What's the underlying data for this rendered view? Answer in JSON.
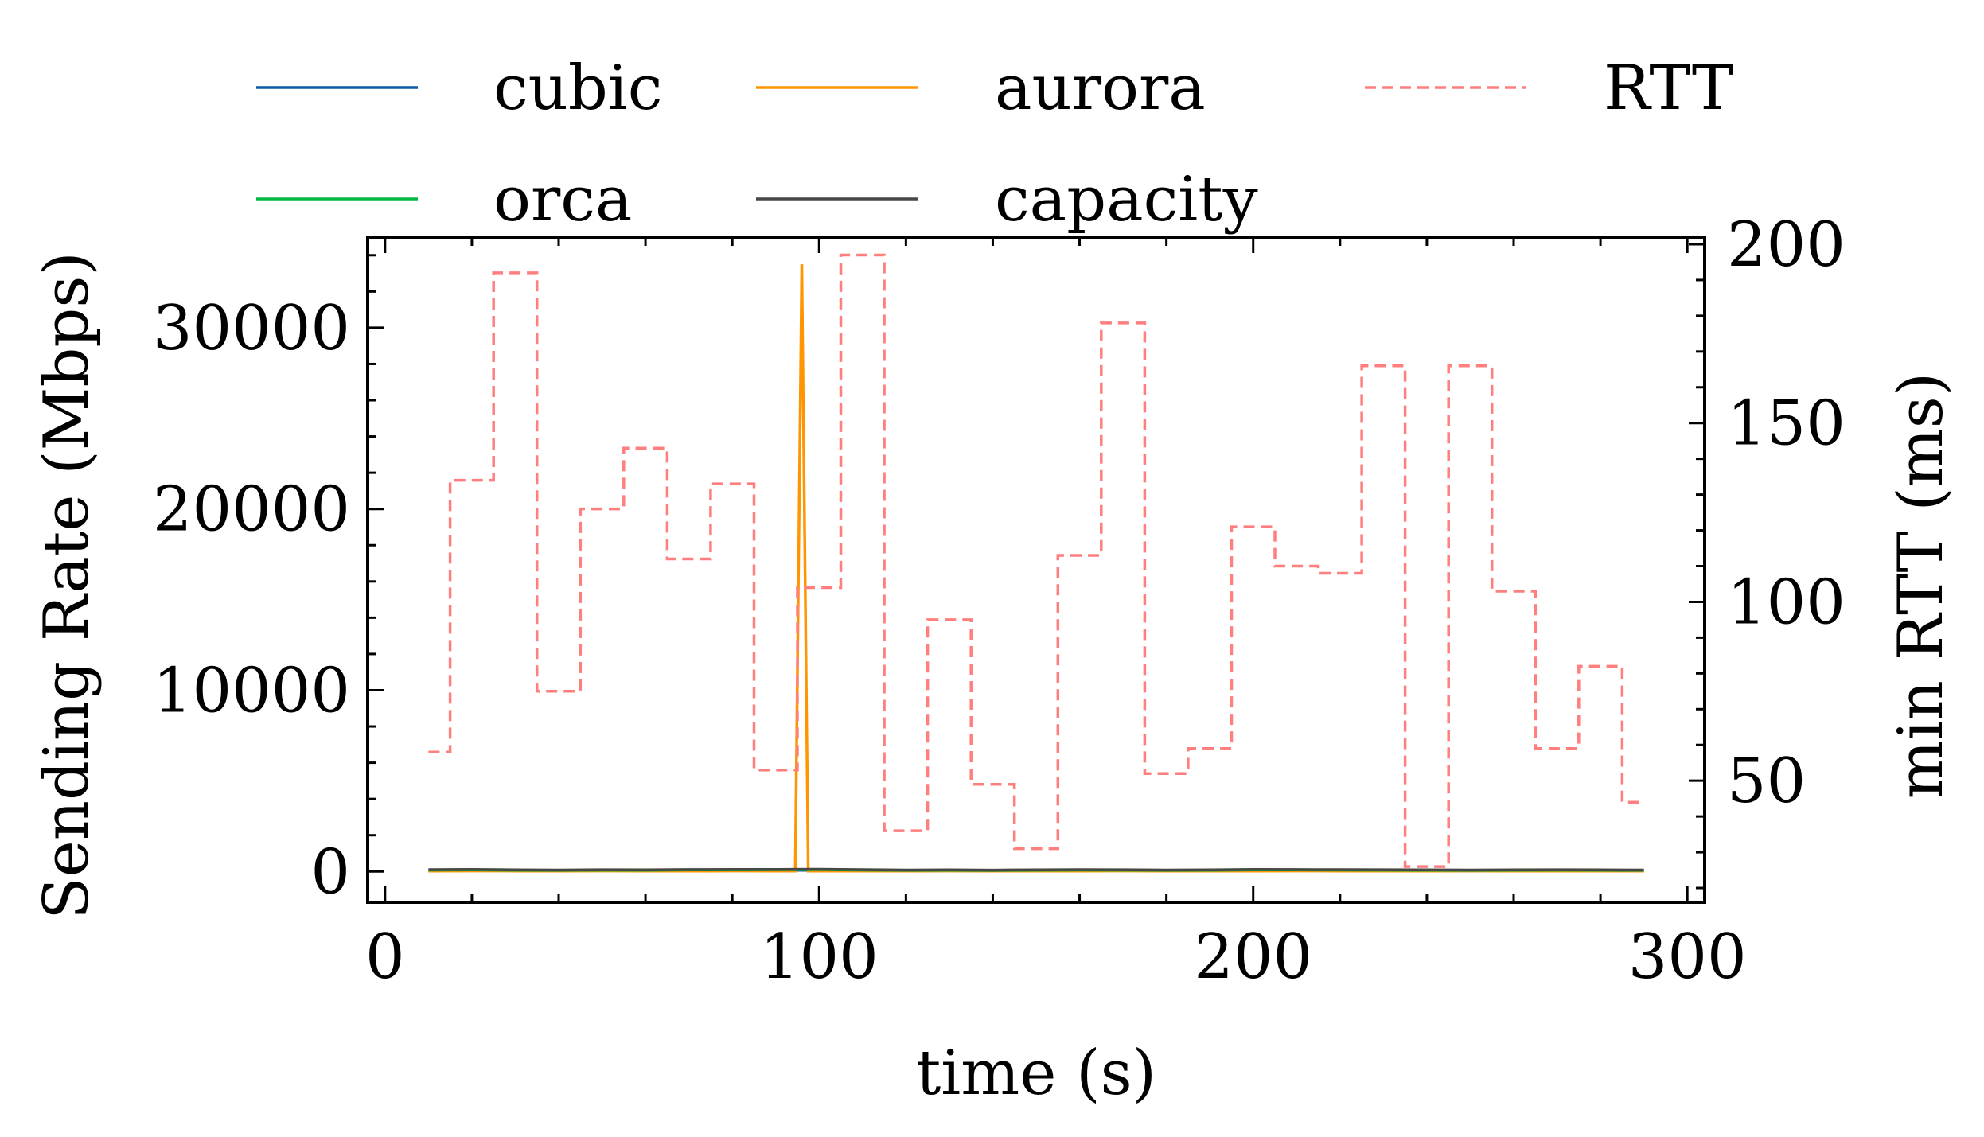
{
  "chart_data": {
    "type": "line",
    "xlabel": "time (s)",
    "ylabel": "Sending Rate (Mbps)",
    "y2label": "min RTT (ms)",
    "xlim": [
      -4,
      304
    ],
    "ylim": [
      -1700,
      35000
    ],
    "y2lim": [
      16,
      202
    ],
    "x_ticks": [
      0,
      100,
      200,
      300
    ],
    "x_ticklabels": [
      "0",
      "100",
      "200",
      "300"
    ],
    "y_ticks": [
      0,
      10000,
      20000,
      30000
    ],
    "y_ticklabels": [
      "0",
      "10000",
      "20000",
      "30000"
    ],
    "y2_ticks": [
      50,
      100,
      150,
      200
    ],
    "y2_ticklabels": [
      "50",
      "100",
      "150",
      "200"
    ],
    "grid": false,
    "legend_position": "top (above plot)",
    "series": [
      {
        "name": "cubic",
        "axis": "left",
        "color": "#0C5DA5",
        "style": "solid",
        "x": [
          10,
          20,
          30,
          40,
          50,
          60,
          70,
          80,
          90,
          100,
          110,
          120,
          130,
          140,
          150,
          160,
          170,
          180,
          190,
          200,
          210,
          220,
          230,
          240,
          250,
          260,
          270,
          280,
          290
        ],
        "y": [
          60,
          70,
          55,
          40,
          50,
          45,
          55,
          60,
          65,
          70,
          50,
          35,
          40,
          30,
          45,
          55,
          50,
          35,
          40,
          60,
          55,
          50,
          45,
          40,
          35,
          45,
          50,
          40,
          40
        ]
      },
      {
        "name": "aurora",
        "axis": "left",
        "color": "#FF9500",
        "style": "solid",
        "x": [
          10,
          20,
          30,
          40,
          50,
          60,
          70,
          80,
          90,
          94.5,
          96,
          97.5,
          100,
          110,
          120,
          130,
          140,
          150,
          160,
          170,
          180,
          190,
          200,
          210,
          220,
          230,
          240,
          250,
          260,
          270,
          280,
          290
        ],
        "y": [
          20,
          30,
          25,
          20,
          30,
          25,
          20,
          30,
          25,
          20,
          33500,
          20,
          25,
          20,
          25,
          30,
          20,
          25,
          20,
          30,
          25,
          20,
          25,
          30,
          20,
          25,
          20,
          30,
          25,
          20,
          25,
          20
        ]
      },
      {
        "name": "orca",
        "axis": "left",
        "color": "#00B945",
        "style": "solid",
        "x": [
          10,
          20,
          30,
          40,
          50,
          60,
          70,
          80,
          90,
          100,
          110,
          120,
          130,
          140,
          150,
          160,
          170,
          180,
          190,
          200,
          210,
          220,
          230,
          240,
          250,
          260,
          270,
          280,
          290
        ],
        "y": [
          80,
          90,
          70,
          60,
          75,
          70,
          85,
          90,
          95,
          100,
          80,
          60,
          65,
          55,
          70,
          80,
          75,
          60,
          65,
          90,
          85,
          80,
          75,
          65,
          60,
          70,
          75,
          65,
          60
        ]
      },
      {
        "name": "capacity",
        "axis": "left",
        "color": "#474747",
        "style": "solid",
        "x": [
          10,
          20,
          30,
          40,
          50,
          60,
          70,
          80,
          90,
          100,
          110,
          120,
          130,
          140,
          150,
          160,
          170,
          180,
          190,
          200,
          210,
          220,
          230,
          240,
          250,
          260,
          270,
          280,
          290
        ],
        "y": [
          100,
          110,
          90,
          80,
          95,
          90,
          105,
          110,
          115,
          120,
          100,
          80,
          85,
          75,
          90,
          100,
          95,
          80,
          85,
          110,
          105,
          100,
          95,
          85,
          80,
          90,
          95,
          85,
          80
        ]
      },
      {
        "name": "RTT",
        "axis": "right",
        "color": "#FF7F7F",
        "style": "dashed-step",
        "x": [
          10,
          20,
          30,
          40,
          50,
          60,
          70,
          80,
          90,
          100,
          110,
          120,
          130,
          140,
          150,
          160,
          170,
          180,
          190,
          200,
          210,
          220,
          230,
          240,
          250,
          260,
          270,
          280,
          290
        ],
        "y": [
          58,
          134,
          192,
          75,
          126,
          143,
          112,
          133,
          53,
          104,
          197,
          36,
          95,
          49,
          31,
          113,
          178,
          52,
          59,
          121,
          110,
          108,
          166,
          26,
          166,
          103,
          59,
          82,
          44
        ]
      }
    ]
  }
}
